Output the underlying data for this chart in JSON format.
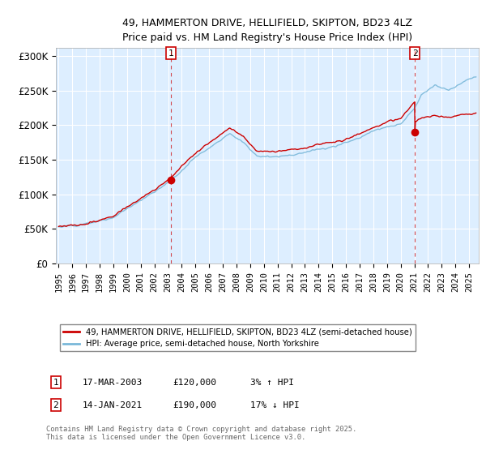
{
  "title_line1": "49, HAMMERTON DRIVE, HELLIFIELD, SKIPTON, BD23 4LZ",
  "title_line2": "Price paid vs. HM Land Registry's House Price Index (HPI)",
  "ylabel_ticks": [
    "£0",
    "£50K",
    "£100K",
    "£150K",
    "£200K",
    "£250K",
    "£300K"
  ],
  "ytick_values": [
    0,
    50000,
    100000,
    150000,
    200000,
    250000,
    300000
  ],
  "ylim": [
    0,
    312000
  ],
  "xlim_start": 1994.8,
  "xlim_end": 2025.7,
  "sale1_year": 2003.21,
  "sale1_price": 120000,
  "sale2_year": 2021.04,
  "sale2_price": 190000,
  "legend_line1": "49, HAMMERTON DRIVE, HELLIFIELD, SKIPTON, BD23 4LZ (semi-detached house)",
  "legend_line2": "HPI: Average price, semi-detached house, North Yorkshire",
  "footnote": "Contains HM Land Registry data © Crown copyright and database right 2025.\nThis data is licensed under the Open Government Licence v3.0.",
  "hpi_color": "#7ab8d9",
  "price_color": "#cc0000",
  "dashed_line_color": "#cc0000",
  "background_color": "#ffffff",
  "chart_bg_color": "#ddeeff",
  "grid_color": "#ffffff"
}
